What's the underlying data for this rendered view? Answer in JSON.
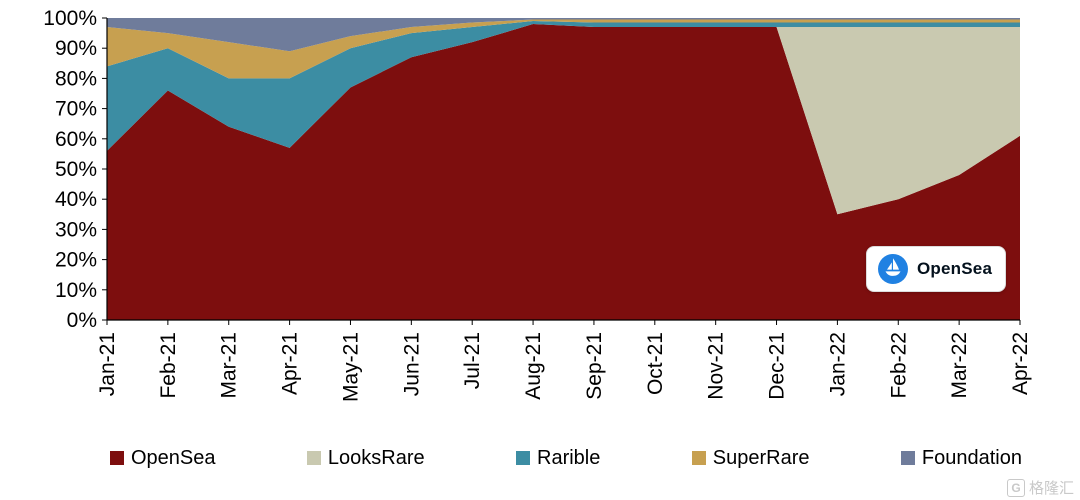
{
  "chart_data": {
    "type": "area",
    "stacked": true,
    "percent": true,
    "title": "",
    "xlabel": "",
    "ylabel": "",
    "ylim": [
      0,
      100
    ],
    "ytick_step": 10,
    "ytick_suffix": "%",
    "grid": false,
    "legend_position": "bottom",
    "categories": [
      "Jan-21",
      "Feb-21",
      "Mar-21",
      "Apr-21",
      "May-21",
      "Jun-21",
      "Jul-21",
      "Aug-21",
      "Sep-21",
      "Oct-21",
      "Nov-21",
      "Dec-21",
      "Jan-22",
      "Feb-22",
      "Mar-22",
      "Apr-22"
    ],
    "series": [
      {
        "name": "OpenSea",
        "color": "#7D0E0E",
        "values": [
          56,
          76,
          64,
          57,
          77,
          87,
          92,
          98,
          97,
          97,
          97,
          97,
          35,
          40,
          48,
          61
        ]
      },
      {
        "name": "LooksRare",
        "color": "#C9C9B0",
        "values": [
          0,
          0,
          0,
          0,
          0,
          0,
          0,
          0,
          0,
          0,
          0,
          0,
          62,
          57,
          49,
          36
        ]
      },
      {
        "name": "Rarible",
        "color": "#3C8DA3",
        "values": [
          28,
          14,
          16,
          23,
          13,
          8,
          5,
          1,
          1.5,
          1.5,
          1.5,
          1.5,
          1.5,
          1.5,
          1.5,
          1.5
        ]
      },
      {
        "name": "SuperRare",
        "color": "#C7A050",
        "values": [
          13,
          5,
          12,
          9,
          4,
          2,
          1.5,
          0.5,
          1,
          1,
          1,
          1,
          1,
          1,
          1,
          1
        ]
      },
      {
        "name": "Foundation",
        "color": "#6F7C9B",
        "values": [
          3,
          5,
          8,
          11,
          6,
          3,
          1.5,
          0.5,
          0.5,
          0.5,
          0.5,
          0.5,
          0.5,
          0.5,
          0.5,
          0.5
        ]
      }
    ]
  },
  "badge": {
    "label": "OpenSea"
  },
  "watermark": {
    "icon": "G",
    "text": "格隆汇"
  }
}
